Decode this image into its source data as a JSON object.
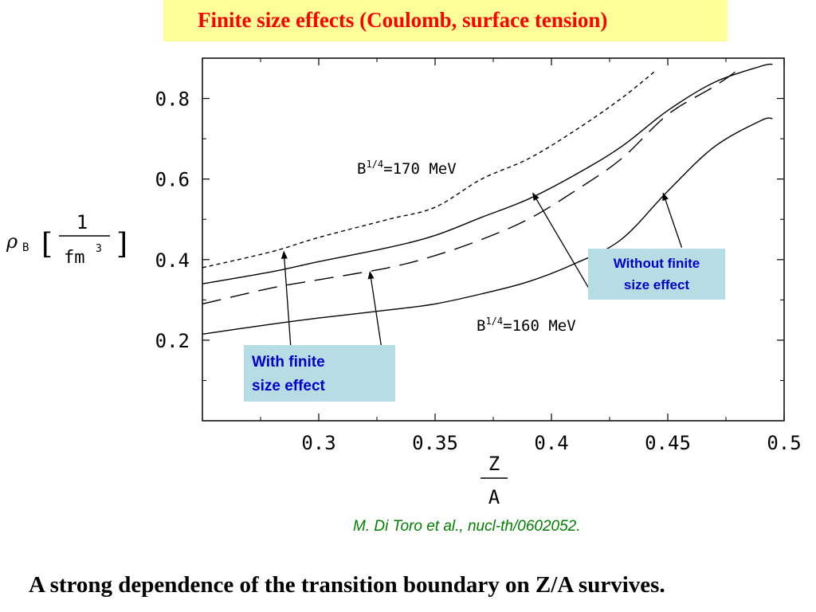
{
  "slide": {
    "title": "Finite size effects (Coulomb, surface tension)",
    "citation": "M. Di Toro et al.,  nucl-th/0602052.",
    "conclusion": "A strong dependence of the transition boundary on Z/A survives.",
    "colors": {
      "title": "#ff0000",
      "title_bg": "#ffff99",
      "annotation_bg": "#b6dde4",
      "annotation_text": "#0000cc",
      "citation": "#008000"
    }
  },
  "annotations": {
    "with_line1": "With finite",
    "with_line2": "size effect",
    "without_line1": "Without finite",
    "without_line2": "size effect"
  },
  "chart_data": {
    "type": "line",
    "xlim": [
      0.25,
      0.5
    ],
    "ylim": [
      0.0,
      0.9
    ],
    "xticks": [
      0.3,
      0.35,
      0.4,
      0.45,
      0.5
    ],
    "xtick_labels": [
      "0.3",
      "0.35",
      "0.4",
      "0.45",
      "0.5"
    ],
    "yticks": [
      0.2,
      0.4,
      0.6,
      0.8
    ],
    "ytick_labels": [
      "0.2",
      "0.4",
      "0.6",
      "0.8"
    ],
    "ylabel": "ρB [ 1 / fm3 ]",
    "xlabel": "Z / A",
    "grid": false,
    "series": [
      {
        "style": "dotted",
        "x": [
          0.25,
          0.28,
          0.3,
          0.33,
          0.35,
          0.37,
          0.39,
          0.41,
          0.43,
          0.445
        ],
        "y": [
          0.38,
          0.42,
          0.455,
          0.5,
          0.53,
          0.6,
          0.65,
          0.72,
          0.8,
          0.87
        ]
      },
      {
        "style": "solid",
        "x": [
          0.25,
          0.28,
          0.3,
          0.33,
          0.35,
          0.37,
          0.39,
          0.41,
          0.43,
          0.45,
          0.47,
          0.49,
          0.495
        ],
        "y": [
          0.34,
          0.37,
          0.395,
          0.43,
          0.46,
          0.505,
          0.55,
          0.61,
          0.68,
          0.77,
          0.84,
          0.88,
          0.885
        ]
      },
      {
        "style": "dashed",
        "x": [
          0.25,
          0.28,
          0.3,
          0.33,
          0.35,
          0.37,
          0.39,
          0.41,
          0.43,
          0.45,
          0.47,
          0.48
        ],
        "y": [
          0.29,
          0.33,
          0.35,
          0.38,
          0.41,
          0.45,
          0.5,
          0.57,
          0.65,
          0.76,
          0.83,
          0.87
        ]
      },
      {
        "style": "solid",
        "x": [
          0.25,
          0.28,
          0.3,
          0.33,
          0.35,
          0.37,
          0.39,
          0.41,
          0.43,
          0.45,
          0.47,
          0.49,
          0.495
        ],
        "y": [
          0.215,
          0.24,
          0.255,
          0.275,
          0.29,
          0.315,
          0.345,
          0.39,
          0.45,
          0.57,
          0.68,
          0.745,
          0.75
        ]
      }
    ],
    "labels": {
      "upper_prefix": "B",
      "upper_exp": "1/4",
      "upper_value": "=170 MeV",
      "lower_prefix": "B",
      "lower_exp": "1/4",
      "lower_value": "=160 MeV"
    },
    "arrows": [
      {
        "from": [
          0.288,
          0.18
        ],
        "to": [
          0.285,
          0.42
        ]
      },
      {
        "from": [
          0.327,
          0.18
        ],
        "to": [
          0.322,
          0.37
        ]
      },
      {
        "from": [
          0.418,
          0.31
        ],
        "to": [
          0.392,
          0.565
        ]
      },
      {
        "from": [
          0.456,
          0.43
        ],
        "to": [
          0.448,
          0.565
        ]
      }
    ]
  }
}
